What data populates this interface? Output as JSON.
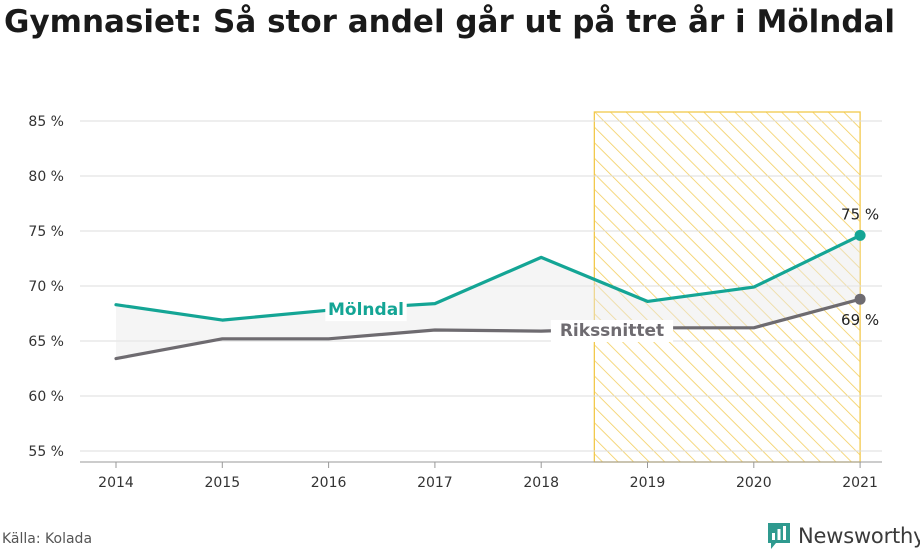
{
  "title": "Gymnasiet: Så stor andel går ut på tre år i Mölndal",
  "source": "Källa: Kolada",
  "brand": "Newsworthy",
  "colors": {
    "molndal": "#14a595",
    "riks": "#6e6b70",
    "highlight": "#f2c94c"
  },
  "chart_data": {
    "type": "line",
    "x": [
      "2014",
      "2015",
      "2016",
      "2017",
      "2018",
      "2019",
      "2020",
      "2021"
    ],
    "ylim": [
      54,
      86
    ],
    "yticks": [
      55,
      60,
      65,
      70,
      75,
      80,
      85
    ],
    "ytick_labels": [
      "55 %",
      "60 %",
      "65 %",
      "70 %",
      "75 %",
      "80 %",
      "85 %"
    ],
    "grid": true,
    "highlight_range": [
      "2019",
      "2021"
    ],
    "series": [
      {
        "name": "Mölndal",
        "values": [
          68.3,
          66.9,
          67.8,
          68.4,
          72.6,
          68.6,
          69.9,
          74.6
        ],
        "end_label": "75 %"
      },
      {
        "name": "Rikssnittet",
        "values": [
          63.4,
          65.2,
          65.2,
          66.0,
          65.9,
          66.2,
          66.2,
          68.8
        ],
        "end_label": "69 %"
      }
    ]
  }
}
